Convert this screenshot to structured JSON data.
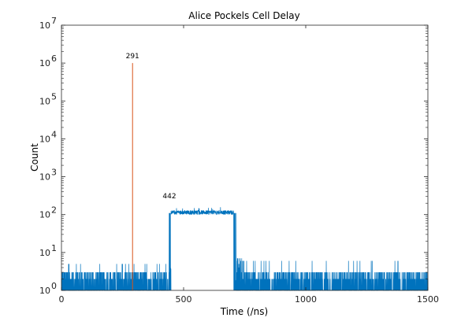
{
  "chart_data": {
    "type": "line",
    "title": "Alice Pockels Cell Delay",
    "xlabel": "Time (/ns)",
    "ylabel": "Count",
    "xlim": [
      0,
      1500
    ],
    "ylim": [
      1,
      10000000
    ],
    "yscale": "log",
    "grid": false,
    "xticks": [
      0,
      500,
      1000,
      1500
    ],
    "xtick_labels": [
      "0",
      "500",
      "1000",
      "1500"
    ],
    "yticks": [
      1,
      10,
      100,
      1000,
      10000,
      100000,
      1000000,
      10000000
    ],
    "ytick_labels": [
      {
        "base": "10",
        "exp": "0"
      },
      {
        "base": "10",
        "exp": "1"
      },
      {
        "base": "10",
        "exp": "2"
      },
      {
        "base": "10",
        "exp": "3"
      },
      {
        "base": "10",
        "exp": "4"
      },
      {
        "base": "10",
        "exp": "5"
      },
      {
        "base": "10",
        "exp": "6"
      },
      {
        "base": "10",
        "exp": "7"
      }
    ],
    "series": [
      {
        "color": "#0072BD",
        "segments": [
          {
            "x_start": 0,
            "x_end": 440,
            "y_low": 1,
            "y_high": 3,
            "y_peak": 5
          },
          {
            "x_start": 440,
            "x_end": 448,
            "y_low": 1,
            "y_high": 110
          },
          {
            "x_start": 448,
            "x_end": 705,
            "y_low": 100,
            "y_high": 130,
            "y_peak": 160
          },
          {
            "x_start": 705,
            "x_end": 715,
            "y_low": 1,
            "y_high": 110
          },
          {
            "x_start": 715,
            "x_end": 740,
            "y_low": 1,
            "y_high": 7,
            "y_peak": 9
          },
          {
            "x_start": 740,
            "x_end": 1500,
            "y_low": 1,
            "y_high": 3,
            "y_peak": 6
          }
        ]
      },
      {
        "color": "#D95319",
        "spike": {
          "x": 291,
          "y_min": 1,
          "y_max": 1000000
        }
      }
    ],
    "annotations": [
      {
        "text": "291",
        "x": 291,
        "y": 1000000
      },
      {
        "text": "442",
        "x": 442,
        "y": 200
      }
    ]
  }
}
